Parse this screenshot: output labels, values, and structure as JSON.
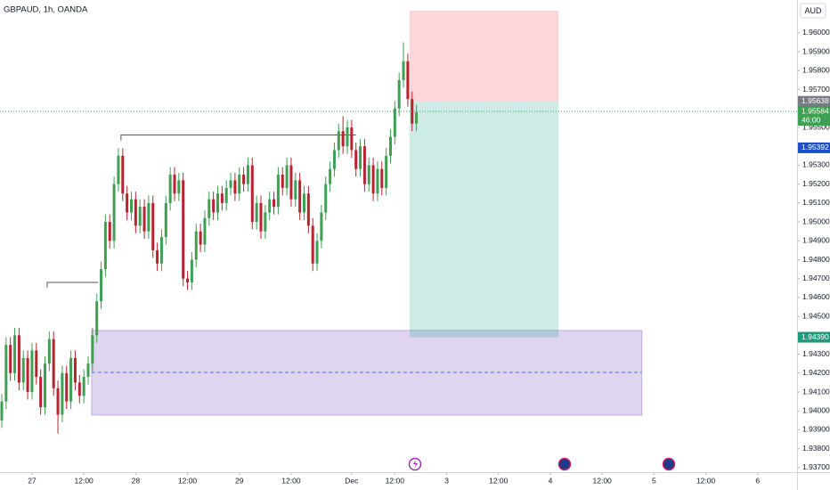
{
  "chart_data": {
    "type": "candlestick",
    "title": "GBPAUD, 1h, OANDA",
    "currency": "AUD",
    "up_color": "#3f9f52",
    "down_color": "#b8232f",
    "xlim": [
      -0.41,
      184.12
    ],
    "ylim": [
      1.93676,
      1.96174
    ],
    "xticks": [
      {
        "value": 7,
        "label": "27"
      },
      {
        "value": 19,
        "label": "12:00"
      },
      {
        "value": 31,
        "label": "28"
      },
      {
        "value": 43,
        "label": "12:00"
      },
      {
        "value": 55,
        "label": "29"
      },
      {
        "value": 67,
        "label": "12:00"
      },
      {
        "value": 81,
        "label": "Dec"
      },
      {
        "value": 91,
        "label": "12:00"
      },
      {
        "value": 103,
        "label": "3"
      },
      {
        "value": 115,
        "label": "12:00"
      },
      {
        "value": 127,
        "label": "4"
      },
      {
        "value": 139,
        "label": "12:00"
      },
      {
        "value": 151,
        "label": "5"
      },
      {
        "value": 163,
        "label": "12:00"
      },
      {
        "value": 175,
        "label": "6"
      }
    ],
    "yticks": [
      {
        "value": 1.96,
        "label": "1.96000"
      },
      {
        "value": 1.959,
        "label": "1.95900"
      },
      {
        "value": 1.958,
        "label": "1.95800"
      },
      {
        "value": 1.957,
        "label": "1.95700"
      },
      {
        "value": 1.955,
        "label": "1.95500"
      },
      {
        "value": 1.953,
        "label": "1.95300"
      },
      {
        "value": 1.952,
        "label": "1.95200"
      },
      {
        "value": 1.951,
        "label": "1.95100"
      },
      {
        "value": 1.95,
        "label": "1.95000"
      },
      {
        "value": 1.949,
        "label": "1.94900"
      },
      {
        "value": 1.948,
        "label": "1.94800"
      },
      {
        "value": 1.947,
        "label": "1.94700"
      },
      {
        "value": 1.946,
        "label": "1.94600"
      },
      {
        "value": 1.945,
        "label": "1.94500"
      },
      {
        "value": 1.943,
        "label": "1.94300"
      },
      {
        "value": 1.942,
        "label": "1.94200"
      },
      {
        "value": 1.941,
        "label": "1.94100"
      },
      {
        "value": 1.94,
        "label": "1.94000"
      },
      {
        "value": 1.939,
        "label": "1.93900"
      },
      {
        "value": 1.938,
        "label": "1.93800"
      },
      {
        "value": 1.937,
        "label": "1.93700"
      }
    ],
    "open": [
      1.9395,
      1.9405,
      1.9435,
      1.942,
      1.944,
      1.9415,
      1.9428,
      1.941,
      1.9432,
      1.9418,
      1.9402,
      1.9425,
      1.9438,
      1.9412,
      1.9398,
      1.942,
      1.9405,
      1.9428,
      1.9415,
      1.9408,
      1.9418,
      1.9425,
      1.944,
      1.9458,
      1.9475,
      1.95,
      1.949,
      1.952,
      1.9535,
      1.9515,
      1.9505,
      1.9512,
      1.9498,
      1.9508,
      1.9495,
      1.951,
      1.9485,
      1.9478,
      1.9492,
      1.951,
      1.9525,
      1.9515,
      1.9522,
      1.947,
      1.9468,
      1.948,
      1.9495,
      1.9488,
      1.9502,
      1.9512,
      1.9505,
      1.9515,
      1.951,
      1.9518,
      1.9522,
      1.9515,
      1.9525,
      1.952,
      1.953,
      1.95,
      1.951,
      1.9495,
      1.9505,
      1.9512,
      1.9508,
      1.9525,
      1.9518,
      1.953,
      1.9512,
      1.9522,
      1.9505,
      1.9515,
      1.9498,
      1.9478,
      1.949,
      1.9505,
      1.952,
      1.9528,
      1.9538,
      1.9548,
      1.954,
      1.955,
      1.9538,
      1.9528,
      1.954,
      1.952,
      1.953,
      1.9515,
      1.9528,
      1.9518,
      1.9535,
      1.9545,
      1.956,
      1.9575,
      1.9585,
      1.9565,
      1.9552
    ],
    "high": [
      1.9409,
      1.9439,
      1.9439,
      1.9444,
      1.9444,
      1.9432,
      1.9432,
      1.9436,
      1.9436,
      1.9422,
      1.9429,
      1.9442,
      1.9442,
      1.9416,
      1.9424,
      1.9424,
      1.9432,
      1.9432,
      1.9419,
      1.9422,
      1.9429,
      1.9444,
      1.9462,
      1.9479,
      1.9504,
      1.9504,
      1.9524,
      1.9539,
      1.9539,
      1.9519,
      1.9516,
      1.9516,
      1.9512,
      1.9512,
      1.9514,
      1.9514,
      1.9489,
      1.9496,
      1.9514,
      1.9529,
      1.9529,
      1.9526,
      1.9526,
      1.9474,
      1.9484,
      1.9499,
      1.9499,
      1.9506,
      1.9516,
      1.9516,
      1.9519,
      1.9519,
      1.9522,
      1.9526,
      1.9526,
      1.9529,
      1.9529,
      1.9534,
      1.9534,
      1.9514,
      1.9514,
      1.9509,
      1.9516,
      1.9516,
      1.9529,
      1.9529,
      1.9534,
      1.9534,
      1.9526,
      1.9526,
      1.9519,
      1.9519,
      1.9502,
      1.9494,
      1.9509,
      1.9524,
      1.9532,
      1.9542,
      1.9552,
      1.9556,
      1.9554,
      1.9554,
      1.9542,
      1.9544,
      1.9544,
      1.9534,
      1.9534,
      1.9532,
      1.9532,
      1.9539,
      1.9549,
      1.9564,
      1.9579,
      1.9595,
      1.9589,
      1.9569,
      1.9562
    ],
    "low": [
      1.9391,
      1.9401,
      1.9416,
      1.9416,
      1.9411,
      1.9411,
      1.9406,
      1.9406,
      1.9414,
      1.9398,
      1.9398,
      1.9421,
      1.9408,
      1.9388,
      1.9394,
      1.9401,
      1.9401,
      1.9411,
      1.9404,
      1.9404,
      1.9414,
      1.9421,
      1.9436,
      1.9454,
      1.9471,
      1.9486,
      1.9486,
      1.9516,
      1.9511,
      1.9501,
      1.9501,
      1.9494,
      1.9494,
      1.9491,
      1.9491,
      1.9481,
      1.9474,
      1.9474,
      1.9488,
      1.9506,
      1.9511,
      1.9511,
      1.9466,
      1.9464,
      1.9464,
      1.9476,
      1.9484,
      1.9484,
      1.9498,
      1.9501,
      1.9501,
      1.9506,
      1.9506,
      1.9514,
      1.9511,
      1.9511,
      1.9516,
      1.9516,
      1.9496,
      1.9496,
      1.9491,
      1.9491,
      1.9501,
      1.9504,
      1.9504,
      1.9514,
      1.9514,
      1.9508,
      1.9508,
      1.9501,
      1.9501,
      1.9494,
      1.9474,
      1.9474,
      1.9486,
      1.9501,
      1.9516,
      1.9524,
      1.9534,
      1.9536,
      1.9536,
      1.9534,
      1.9524,
      1.9524,
      1.9516,
      1.9516,
      1.9511,
      1.9511,
      1.9514,
      1.9514,
      1.9531,
      1.9541,
      1.9556,
      1.9571,
      1.9561,
      1.9548,
      1.9548
    ],
    "close": [
      1.9405,
      1.9435,
      1.942,
      1.944,
      1.9415,
      1.9428,
      1.941,
      1.9432,
      1.9418,
      1.9402,
      1.9425,
      1.9438,
      1.9412,
      1.9398,
      1.942,
      1.9405,
      1.9428,
      1.9415,
      1.9408,
      1.9418,
      1.9425,
      1.944,
      1.9458,
      1.9475,
      1.95,
      1.949,
      1.952,
      1.9535,
      1.9515,
      1.9505,
      1.9512,
      1.9498,
      1.9508,
      1.9495,
      1.951,
      1.9485,
      1.9478,
      1.9492,
      1.951,
      1.9525,
      1.9515,
      1.9522,
      1.947,
      1.9468,
      1.948,
      1.9495,
      1.9488,
      1.9502,
      1.9512,
      1.9505,
      1.9515,
      1.951,
      1.9518,
      1.9522,
      1.9515,
      1.9525,
      1.952,
      1.953,
      1.95,
      1.951,
      1.9495,
      1.9505,
      1.9512,
      1.9508,
      1.9525,
      1.9518,
      1.953,
      1.9512,
      1.9522,
      1.9505,
      1.9515,
      1.9498,
      1.9478,
      1.949,
      1.9505,
      1.952,
      1.9528,
      1.9538,
      1.9548,
      1.954,
      1.955,
      1.9538,
      1.9528,
      1.954,
      1.952,
      1.953,
      1.9515,
      1.9528,
      1.9518,
      1.9535,
      1.9545,
      1.956,
      1.9575,
      1.9585,
      1.9565,
      1.9552,
      1.9558
    ],
    "position": {
      "start": 94.4,
      "end": 128.9,
      "stop": 1.96118,
      "entry": 1.95638,
      "target": 1.9439
    },
    "zone": {
      "start": 20.8,
      "end": 148.2,
      "top": 1.94426,
      "bottom": 1.93978,
      "mid": 1.94204
    },
    "levels": [
      {
        "start": 27.6,
        "end": 82,
        "price": 1.9546
      },
      {
        "start": 10.5,
        "end": 22.3,
        "price": 1.9468
      }
    ],
    "price_tags": [
      {
        "value": 1.95638,
        "label": "1.95638",
        "color": "#787b86"
      },
      {
        "value": 1.95584,
        "label": "1.95584",
        "color": "#3f9f52",
        "countdown": "46:00"
      },
      {
        "value": 1.95392,
        "label": "1.95392",
        "color": "#1e50c8"
      },
      {
        "value": 1.9439,
        "label": "1.94390",
        "color": "#22997a"
      }
    ]
  }
}
